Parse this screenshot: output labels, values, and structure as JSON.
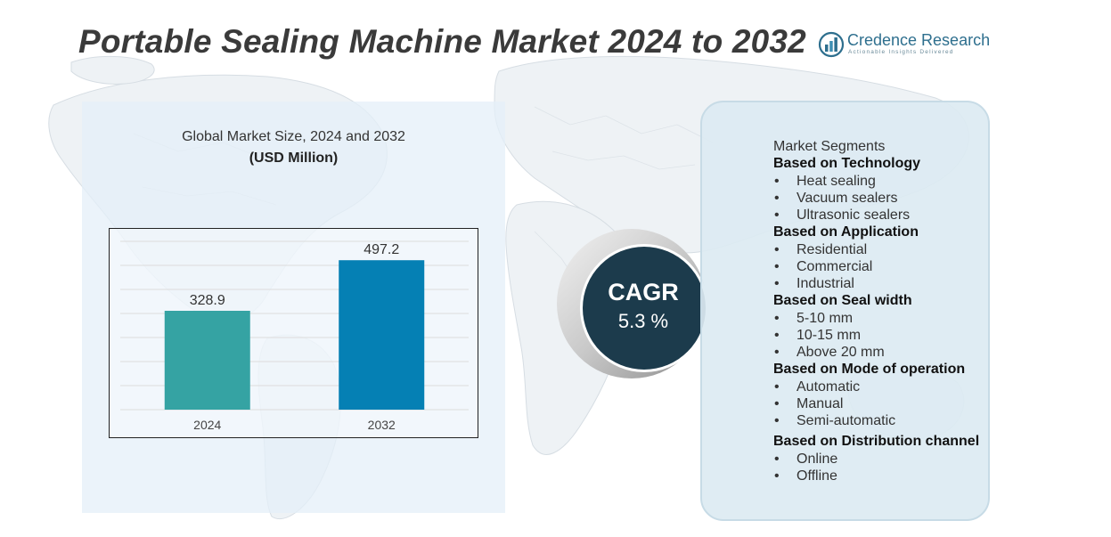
{
  "title": "Portable Sealing Machine Market 2024 to 2032",
  "brand": {
    "name": "Credence Research",
    "tagline": "Actionable Insights Delivered",
    "color": "#2e6f8e"
  },
  "chart_heading": "Global Market Size, 2024 and 2032",
  "chart_unit": "(USD Million)",
  "chart_data": {
    "type": "bar",
    "categories": [
      "2024",
      "2032"
    ],
    "values": [
      328.9,
      497.2
    ],
    "value_labels": [
      "328.9",
      "497.2"
    ],
    "colors": [
      "#35a3a3",
      "#0580b4"
    ],
    "ylim": [
      0,
      560
    ],
    "grid": true,
    "title": "Global Market Size, 2024 and 2032",
    "ylabel": "(USD Million)",
    "xlabel": ""
  },
  "cagr": {
    "label": "CAGR",
    "value": "5.3 %",
    "color": "#1c3b4c"
  },
  "segments": {
    "title": "Market Segments",
    "groups": [
      {
        "heading": "Based on Technology",
        "items": [
          "Heat sealing",
          "Vacuum sealers",
          "Ultrasonic sealers"
        ]
      },
      {
        "heading": "Based on Application",
        "items": [
          "Residential",
          "Commercial",
          "Industrial"
        ]
      },
      {
        "heading": "Based on Seal width",
        "items": [
          "5-10 mm",
          "10-15 mm",
          "Above 20 mm"
        ]
      },
      {
        "heading": "Based on Mode of operation",
        "items": [
          "Automatic",
          "Manual",
          "Semi-automatic"
        ]
      },
      {
        "heading": "Based on Distribution channel",
        "items": [
          "Online",
          "Offline"
        ]
      }
    ]
  }
}
